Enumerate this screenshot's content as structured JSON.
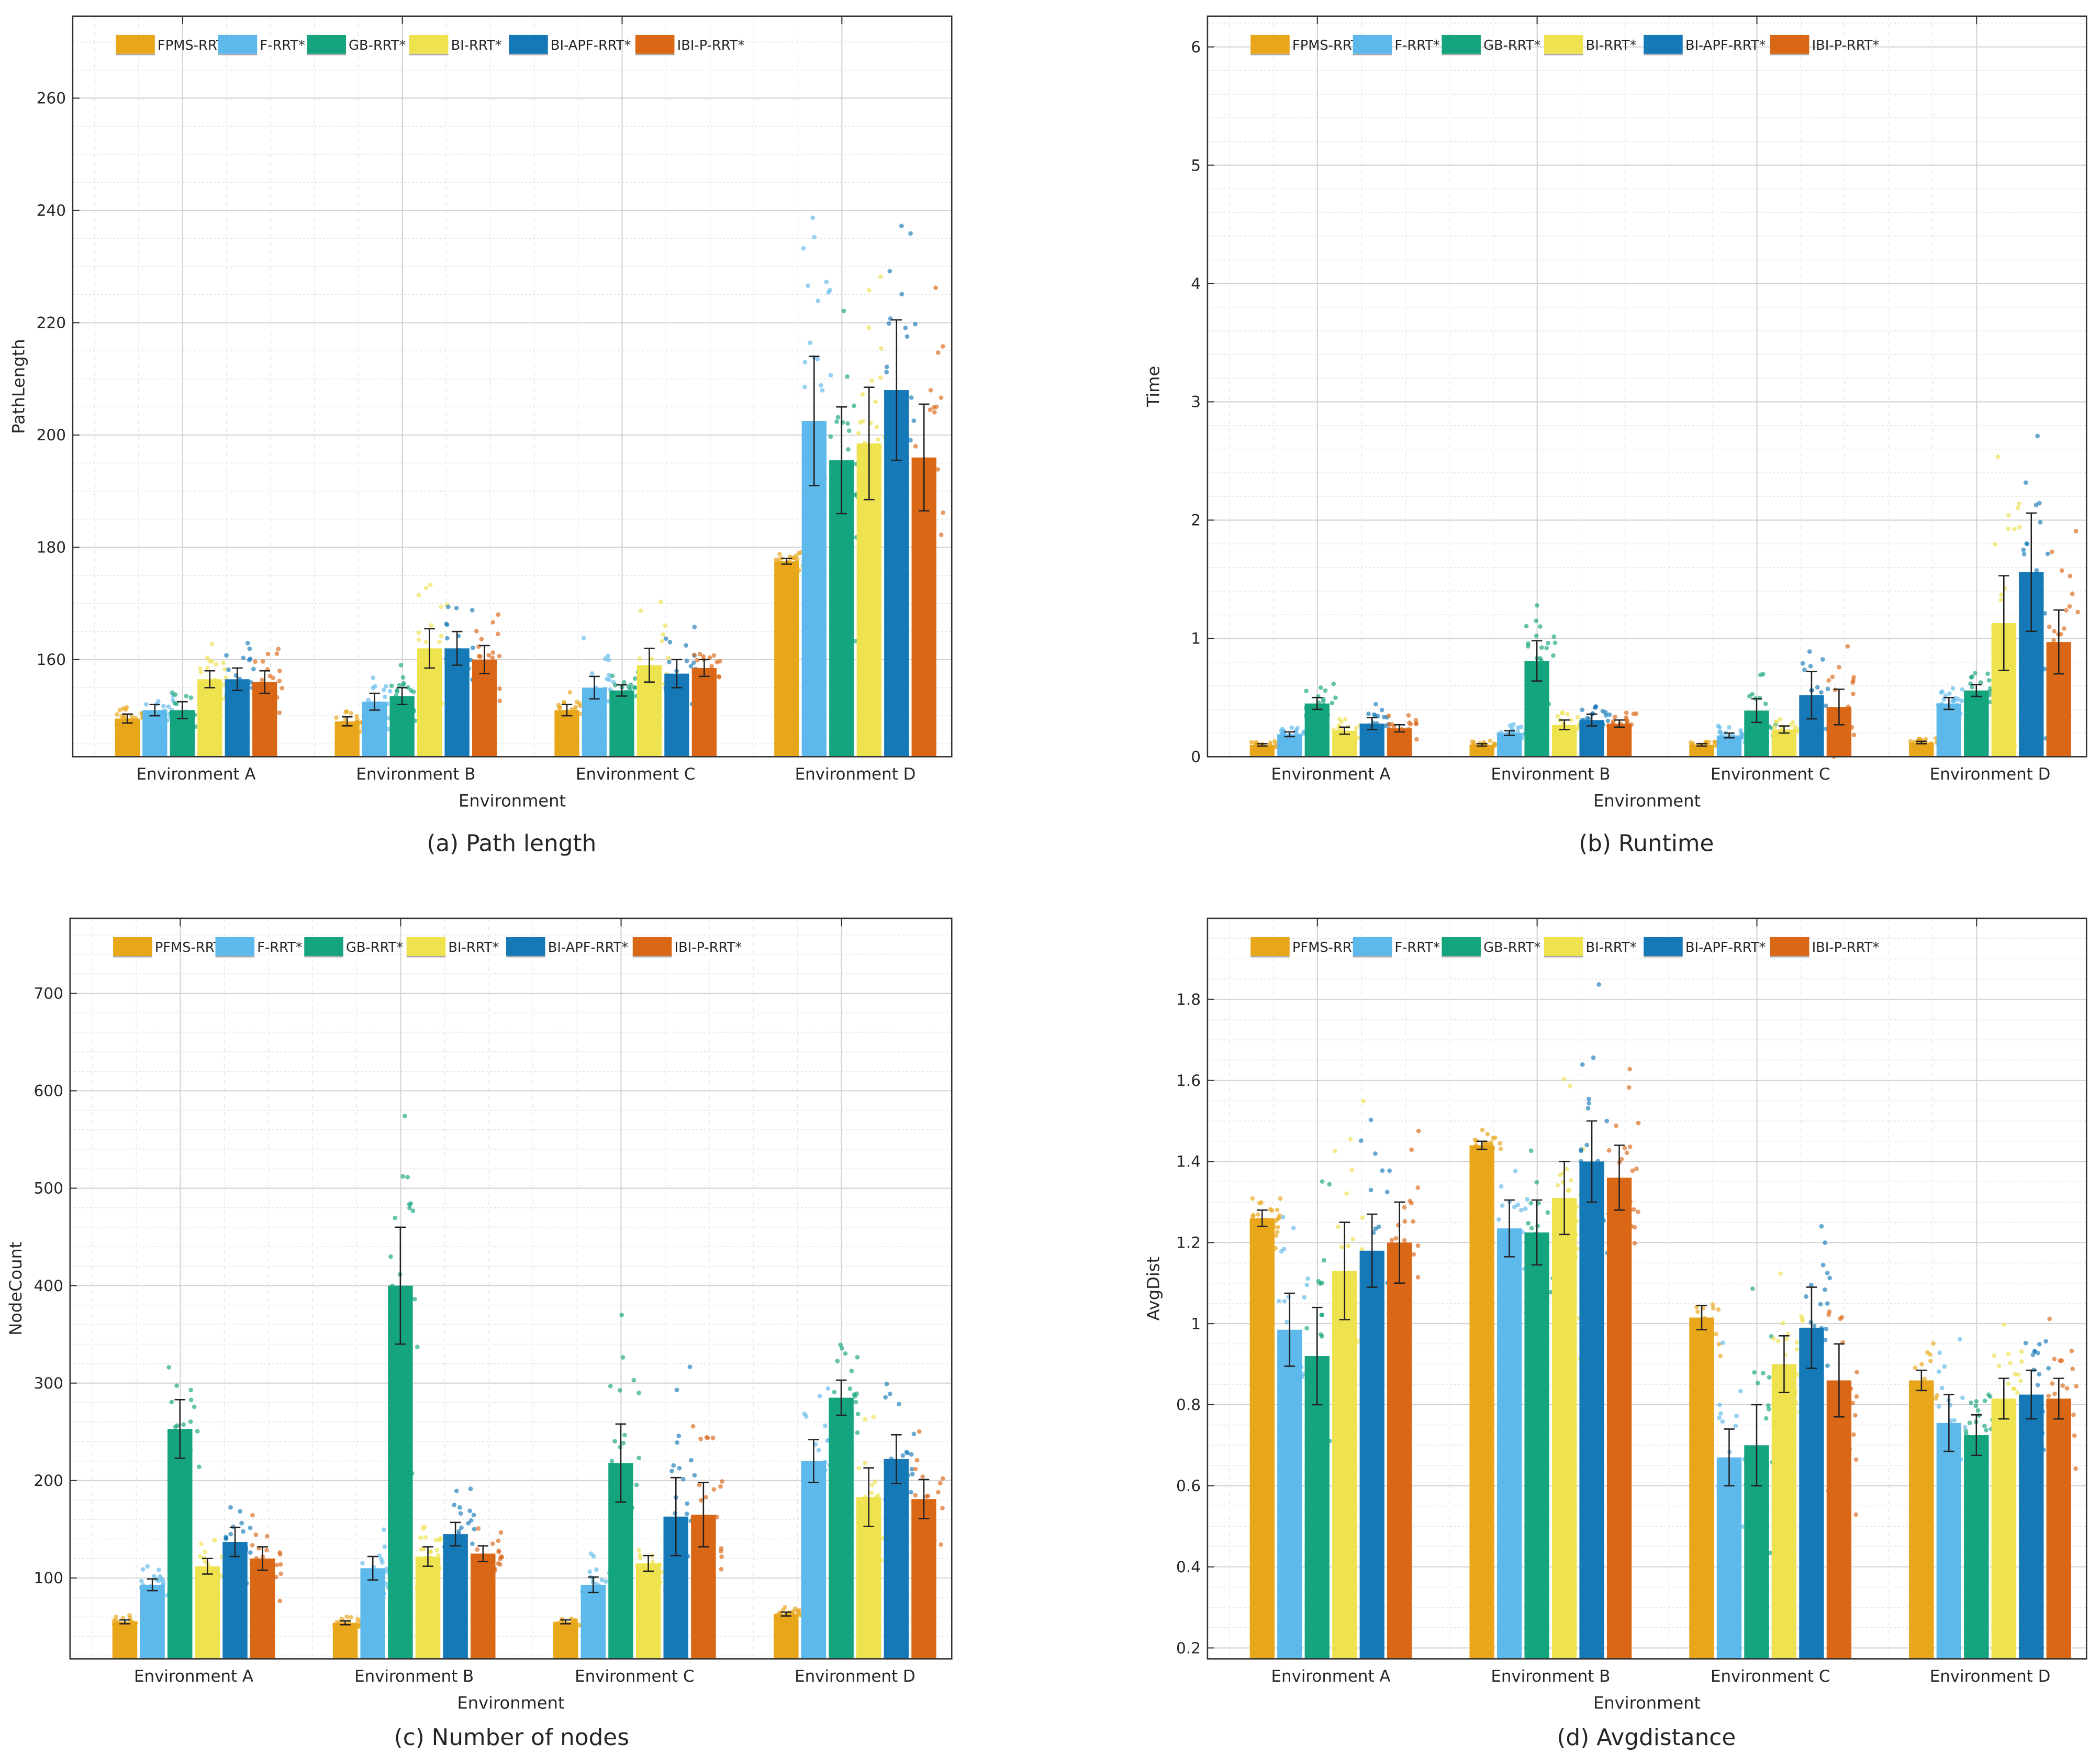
{
  "colors": [
    "#E8A61A",
    "#5DB9EB",
    "#14A57E",
    "#EEE24E",
    "#1579B8",
    "#DA6716"
  ],
  "chart_data": [
    {
      "type": "bar",
      "caption": "(a) Path length",
      "xlabel": "Environment",
      "ylabel": "PathLength",
      "ylim": [
        142.7,
        274.6
      ],
      "yticks": [
        160,
        180,
        200,
        220,
        240,
        260
      ],
      "ytick_labels": [
        "160",
        "180",
        "200",
        "220",
        "240",
        "260"
      ],
      "minor_step": 5,
      "grid": true,
      "legend_placement": "top",
      "categories": [
        "Environment A",
        "Environment B",
        "Environment C",
        "Environment D"
      ],
      "series": [
        {
          "name": "FPMS-RRT*",
          "values": [
            149.5,
            149,
            151,
            177.5
          ],
          "errors": [
            0.8,
            0.8,
            1,
            0.5
          ]
        },
        {
          "name": "F-RRT*",
          "values": [
            151,
            152.5,
            155,
            202.5
          ],
          "errors": [
            1,
            1.5,
            2,
            11.5
          ]
        },
        {
          "name": "GB-RRT*",
          "values": [
            151,
            153.5,
            154.5,
            195.5
          ],
          "errors": [
            1.5,
            1.5,
            1,
            9.5
          ]
        },
        {
          "name": "BI-RRT*",
          "values": [
            156.5,
            162,
            159,
            198.5
          ],
          "errors": [
            1.5,
            3.5,
            3,
            10
          ]
        },
        {
          "name": "BI-APF-RRT*",
          "values": [
            156.5,
            162,
            157.5,
            208
          ],
          "errors": [
            2,
            3,
            2.5,
            12.5
          ]
        },
        {
          "name": "IBI-P-RRT*",
          "values": [
            156,
            160,
            158.5,
            196
          ],
          "errors": [
            2,
            2.5,
            1.5,
            9.5
          ]
        }
      ]
    },
    {
      "type": "bar",
      "caption": "(b) Runtime",
      "xlabel": "Environment",
      "ylabel": "Time",
      "ylim": [
        0,
        6.26
      ],
      "yticks": [
        0,
        1,
        2,
        3,
        4,
        5,
        6
      ],
      "ytick_labels": [
        "0",
        "1",
        "2",
        "3",
        "4",
        "5",
        "6"
      ],
      "minor_step": 0.2,
      "grid": true,
      "legend_placement": "top",
      "categories": [
        "Environment A",
        "Environment B",
        "Environment C",
        "Environment D"
      ],
      "series": [
        {
          "name": "FPMS-RRT*",
          "values": [
            0.1,
            0.1,
            0.1,
            0.12
          ],
          "errors": [
            0.01,
            0.01,
            0.01,
            0.01
          ]
        },
        {
          "name": "F-RRT*",
          "values": [
            0.19,
            0.2,
            0.18,
            0.45
          ],
          "errors": [
            0.02,
            0.02,
            0.02,
            0.05
          ]
        },
        {
          "name": "GB-RRT*",
          "values": [
            0.45,
            0.81,
            0.39,
            0.56
          ],
          "errors": [
            0.05,
            0.17,
            0.1,
            0.05
          ]
        },
        {
          "name": "BI-RRT*",
          "values": [
            0.22,
            0.27,
            0.23,
            1.13
          ],
          "errors": [
            0.03,
            0.04,
            0.03,
            0.4
          ]
        },
        {
          "name": "BI-APF-RRT*",
          "values": [
            0.28,
            0.31,
            0.52,
            1.56
          ],
          "errors": [
            0.05,
            0.05,
            0.2,
            0.5
          ]
        },
        {
          "name": "IBI-P-RRT*",
          "values": [
            0.24,
            0.28,
            0.42,
            0.97
          ],
          "errors": [
            0.03,
            0.03,
            0.15,
            0.27
          ]
        }
      ]
    },
    {
      "type": "bar",
      "caption": "(c) Number of nodes",
      "xlabel": "Environment",
      "ylabel": "NodeCount",
      "ylim": [
        17,
        777
      ],
      "yticks": [
        100,
        200,
        300,
        400,
        500,
        600,
        700
      ],
      "ytick_labels": [
        "100",
        "200",
        "300",
        "400",
        "500",
        "600",
        "700"
      ],
      "minor_step": 20,
      "grid": true,
      "legend_placement": "top",
      "categories": [
        "Environment A",
        "Environment B",
        "Environment C",
        "Environment D"
      ],
      "series": [
        {
          "name": "PFMS-RRT*",
          "values": [
            55,
            54,
            55,
            63
          ],
          "errors": [
            2,
            2,
            2,
            2
          ]
        },
        {
          "name": "F-RRT*",
          "values": [
            93,
            110,
            93,
            220
          ],
          "errors": [
            6,
            12,
            8,
            22
          ]
        },
        {
          "name": "GB-RRT*",
          "values": [
            253,
            400,
            218,
            285
          ],
          "errors": [
            30,
            60,
            40,
            18
          ]
        },
        {
          "name": "BI-RRT*",
          "values": [
            112,
            122,
            115,
            183
          ],
          "errors": [
            8,
            10,
            8,
            30
          ]
        },
        {
          "name": "BI-APF-RRT*",
          "values": [
            137,
            145,
            163,
            222
          ],
          "errors": [
            15,
            12,
            40,
            25
          ]
        },
        {
          "name": "IBI-P-RRT*",
          "values": [
            120,
            125,
            165,
            181
          ],
          "errors": [
            12,
            8,
            33,
            20
          ]
        }
      ]
    },
    {
      "type": "bar",
      "caption": "(d) Avgdistance",
      "xlabel": "Environment",
      "ylabel": "AvgDist",
      "ylim": [
        0.173,
        2.0
      ],
      "yticks": [
        0.2,
        0.4,
        0.6,
        0.8,
        1,
        1.2,
        1.4,
        1.6,
        1.8
      ],
      "ytick_labels": [
        "0.2",
        "0.4",
        "0.6",
        "0.8",
        "1",
        "1.2",
        "1.4",
        "1.6",
        "1.8"
      ],
      "minor_step": 0.05,
      "grid": true,
      "legend_placement": "top",
      "categories": [
        "Environment A",
        "Environment B",
        "Environment C",
        "Environment D"
      ],
      "series": [
        {
          "name": "PFMS-RRT*",
          "values": [
            1.26,
            1.44,
            1.015,
            0.86
          ],
          "errors": [
            0.02,
            0.01,
            0.03,
            0.025
          ]
        },
        {
          "name": "F-RRT*",
          "values": [
            0.985,
            1.235,
            0.67,
            0.755
          ],
          "errors": [
            0.09,
            0.07,
            0.07,
            0.07
          ]
        },
        {
          "name": "GB-RRT*",
          "values": [
            0.92,
            1.225,
            0.7,
            0.725
          ],
          "errors": [
            0.12,
            0.08,
            0.1,
            0.05
          ]
        },
        {
          "name": "BI-RRT*",
          "values": [
            1.13,
            1.31,
            0.9,
            0.815
          ],
          "errors": [
            0.12,
            0.09,
            0.07,
            0.05
          ]
        },
        {
          "name": "BI-APF-RRT*",
          "values": [
            1.18,
            1.4,
            0.99,
            0.825
          ],
          "errors": [
            0.09,
            0.1,
            0.1,
            0.06
          ]
        },
        {
          "name": "IBI-P-RRT*",
          "values": [
            1.2,
            1.36,
            0.86,
            0.815
          ],
          "errors": [
            0.1,
            0.08,
            0.09,
            0.05
          ]
        }
      ]
    }
  ]
}
